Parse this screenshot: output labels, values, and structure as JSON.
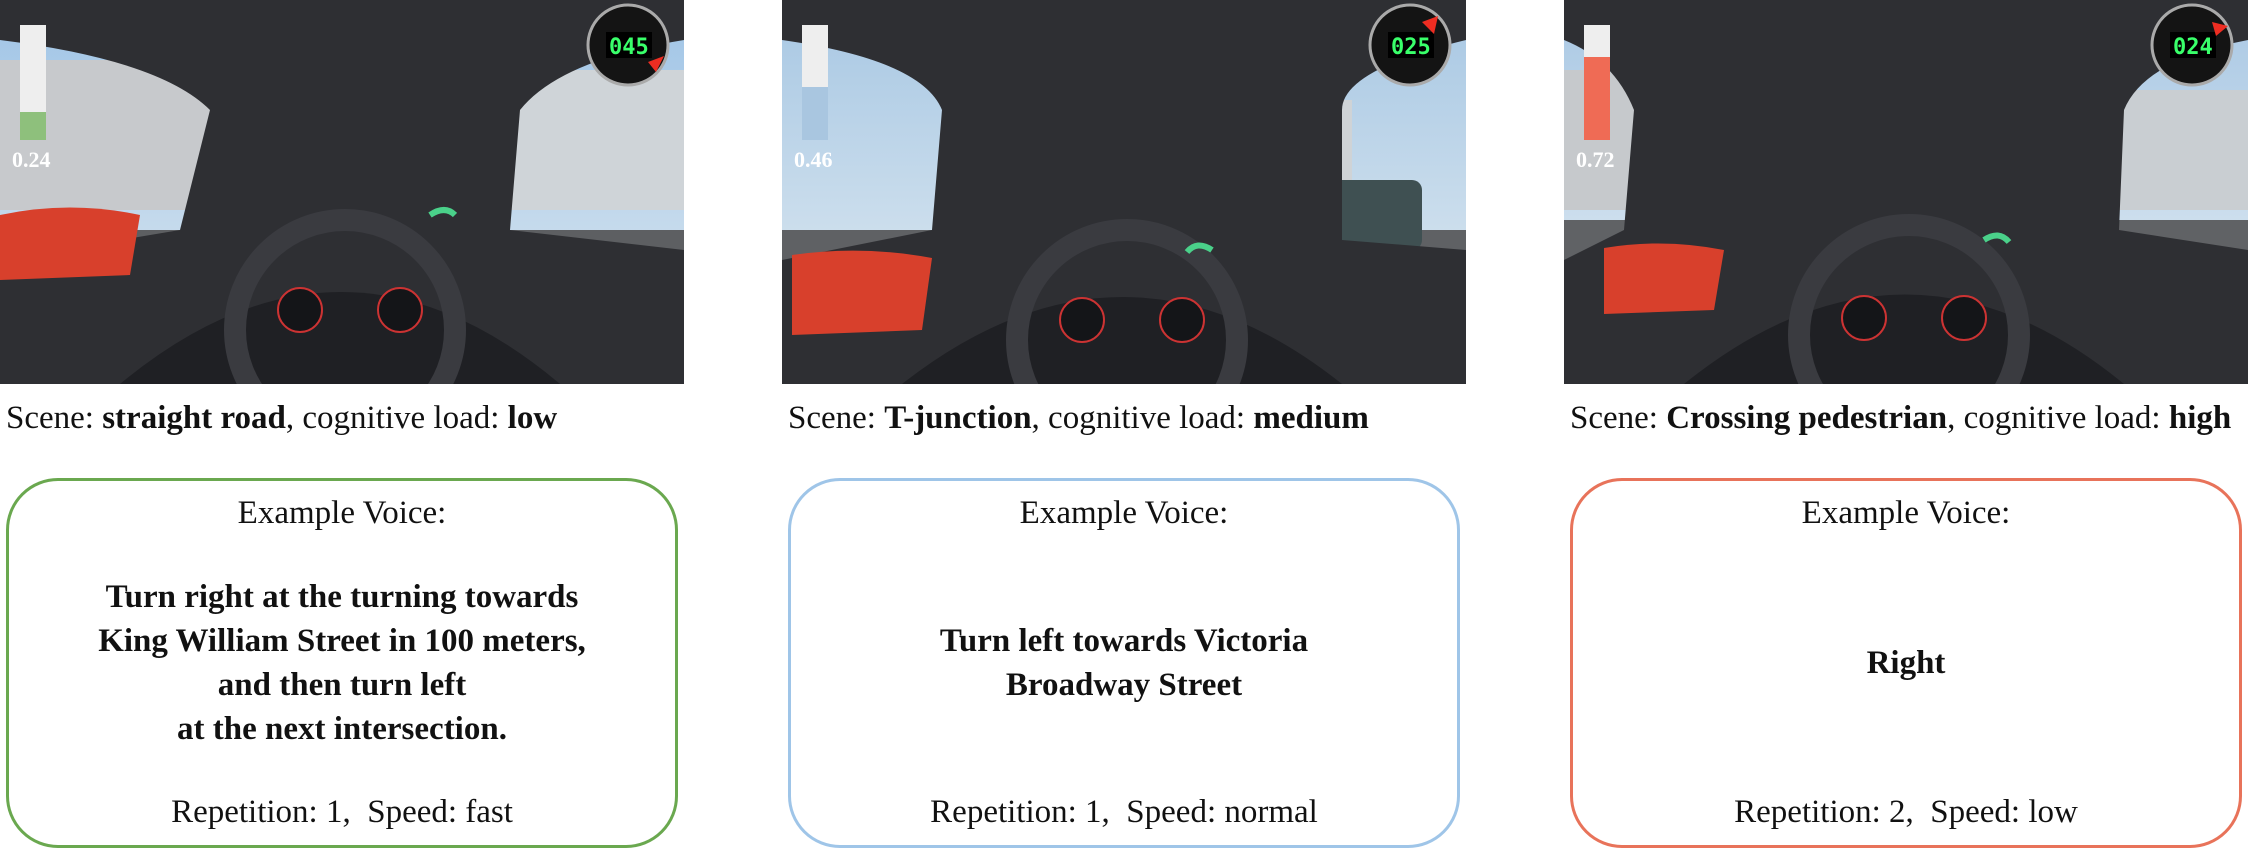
{
  "panels": [
    {
      "load_value": "0.24",
      "load_level": 0.24,
      "load_color": "#8ec07c",
      "speed_display": "045",
      "caption": {
        "prefix": "Scene: ",
        "scene": "straight road",
        "middle": ", cognitive load: ",
        "load": "low"
      },
      "voice": {
        "title": "Example Voice:",
        "text": "Turn right at the turning towards\nKing William Street in 100 meters,\nand then turn left\nat the next intersection.",
        "meta": "Repetition: 1,  Speed: fast"
      },
      "accent": "#6aa84f"
    },
    {
      "load_value": "0.46",
      "load_level": 0.46,
      "load_color": "#a9c6e0",
      "speed_display": "025",
      "caption": {
        "prefix": "Scene: ",
        "scene": "T-junction",
        "middle": ", cognitive load: ",
        "load": "medium"
      },
      "voice": {
        "title": "Example Voice:",
        "text": "Turn left towards Victoria\nBroadway Street",
        "meta": "Repetition: 1,  Speed: normal"
      },
      "accent": "#9fc5e8"
    },
    {
      "load_value": "0.72",
      "load_level": 0.72,
      "load_color": "#ef6b55",
      "speed_display": "024",
      "caption": {
        "prefix": "Scene: ",
        "scene": "Crossing pedestrian",
        "middle": ", cognitive load: ",
        "load": "high"
      },
      "voice": {
        "title": "Example Voice:",
        "text": "Right",
        "meta": "Repetition: 2,  Speed: low"
      },
      "accent": "#e8735a"
    }
  ]
}
